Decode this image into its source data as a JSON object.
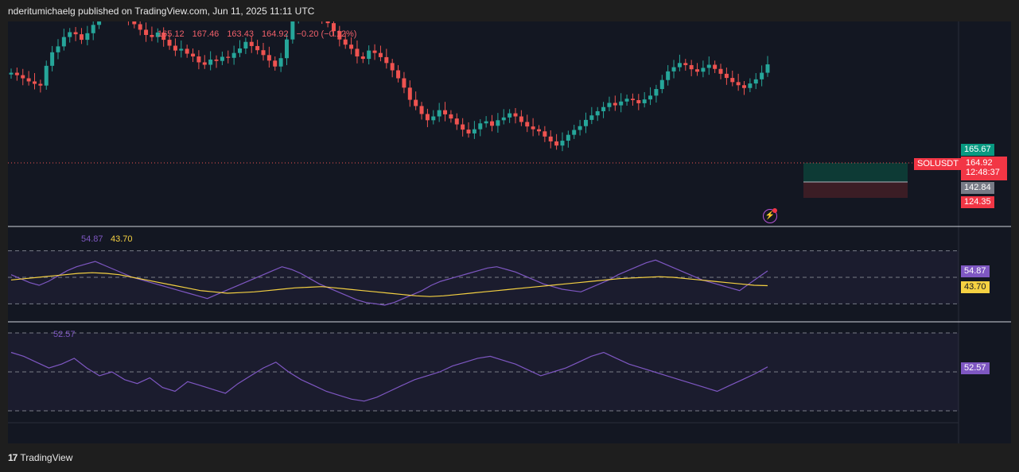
{
  "header": {
    "published_text": "nderitumichaelg published on TradingView.com, Jun 11, 2025 11:11 UTC"
  },
  "ohlc": {
    "open": "165.12",
    "high": "167.46",
    "low": "163.43",
    "close": "164.92",
    "change": "−0.20 (−0.12%)"
  },
  "price_axis": {
    "symbol_label": "SOLUSDT",
    "last_price": "164.92",
    "countdown": "12:48:37",
    "take_profit": "165.67",
    "entry": "142.84",
    "stop_loss": "124.35"
  },
  "rsi_panel": {
    "rsi_value": "54.87",
    "ma_value": "43.70",
    "rsi_color": "#7e57c2",
    "ma_color": "#f5d142"
  },
  "osc_panel": {
    "value": "52.57",
    "color": "#7e57c2"
  },
  "footer": {
    "brand": "TradingView"
  },
  "colors": {
    "up": "#26a69a",
    "down": "#ef5350",
    "background": "#131722"
  },
  "chart_data": [
    {
      "type": "candlestick",
      "symbol": "SOLUSDT",
      "last": 164.92,
      "y_range": [
        120,
        175
      ],
      "closes": [
        162.5,
        161.8,
        160.9,
        160.0,
        159.3,
        158.8,
        164.5,
        168.4,
        170.1,
        172.8,
        174.2,
        173.6,
        172.0,
        173.9,
        176.3,
        178.9,
        181.2,
        182.6,
        180.1,
        179.0,
        178.2,
        176.5,
        174.9,
        173.4,
        172.8,
        174.1,
        172.0,
        170.3,
        168.9,
        169.4,
        168.0,
        167.2,
        165.5,
        164.8,
        166.3,
        165.9,
        167.1,
        166.8,
        168.2,
        169.5,
        171.4,
        170.2,
        169.0,
        167.6,
        166.0,
        164.3,
        166.7,
        172.1,
        178.3,
        182.5,
        184.9,
        182.0,
        180.3,
        178.6,
        176.8,
        174.5,
        172.1,
        170.6,
        169.4,
        167.2,
        166.5,
        168.9,
        168.2,
        167.0,
        165.3,
        163.2,
        160.9,
        158.2,
        154.7,
        152.9,
        150.6,
        148.8,
        149.9,
        151.7,
        150.5,
        149.3,
        147.6,
        146.1,
        145.0,
        146.2,
        147.9,
        148.5,
        147.2,
        148.8,
        149.6,
        150.8,
        149.9,
        148.3,
        147.0,
        146.2,
        145.6,
        144.1,
        142.7,
        141.5,
        142.9,
        144.6,
        146.0,
        147.1,
        148.9,
        150.2,
        151.4,
        152.6,
        153.8,
        153.1,
        154.2,
        155.0,
        154.6,
        153.7,
        154.8,
        155.9,
        157.8,
        160.4,
        162.9,
        164.1,
        165.3,
        164.7,
        163.5,
        162.8,
        163.9,
        164.8,
        163.6,
        162.2,
        161.0,
        159.8,
        158.9,
        158.1,
        159.4,
        160.6,
        162.5,
        164.92
      ],
      "rsi": [
        52,
        49,
        46,
        44,
        47,
        51,
        55,
        58,
        60,
        62,
        59,
        56,
        53,
        50,
        48,
        46,
        44,
        42,
        40,
        38,
        36,
        34,
        37,
        40,
        43,
        46,
        49,
        52,
        55,
        58,
        56,
        53,
        49,
        45,
        42,
        39,
        36,
        33,
        31,
        30,
        29,
        31,
        34,
        37,
        40,
        44,
        47,
        49,
        51,
        53,
        55,
        57,
        58,
        56,
        54,
        51,
        48,
        45,
        43,
        41,
        40,
        39,
        42,
        45,
        48,
        52,
        55,
        58,
        61,
        63,
        60,
        57,
        54,
        51,
        48,
        46,
        44,
        42,
        40,
        45,
        50,
        54.87
      ],
      "rsi_ma": [
        48,
        49,
        50,
        51,
        52,
        53,
        53.5,
        53,
        52,
        50,
        48,
        46,
        44,
        42,
        40,
        39,
        38,
        38.5,
        39,
        40,
        41,
        42,
        42.5,
        43,
        42,
        41,
        40,
        39,
        38,
        37,
        36,
        35.5,
        36,
        37,
        38,
        39,
        40,
        41,
        42,
        43,
        44,
        45,
        46,
        47,
        48,
        49,
        49.5,
        50,
        50.5,
        50,
        49,
        48,
        47,
        46,
        45,
        44,
        43.7
      ],
      "osc": [
        60,
        58,
        55,
        52,
        54,
        57,
        52,
        48,
        50,
        46,
        44,
        47,
        42,
        40,
        45,
        43,
        41,
        39,
        44,
        48,
        52,
        55,
        50,
        46,
        43,
        40,
        38,
        36,
        35,
        37,
        40,
        43,
        46,
        48,
        50,
        53,
        55,
        57,
        58,
        56,
        54,
        51,
        48,
        50,
        52,
        55,
        58,
        60,
        57,
        54,
        52,
        50,
        48,
        46,
        44,
        42,
        40,
        43,
        46,
        49,
        52.57
      ]
    }
  ]
}
